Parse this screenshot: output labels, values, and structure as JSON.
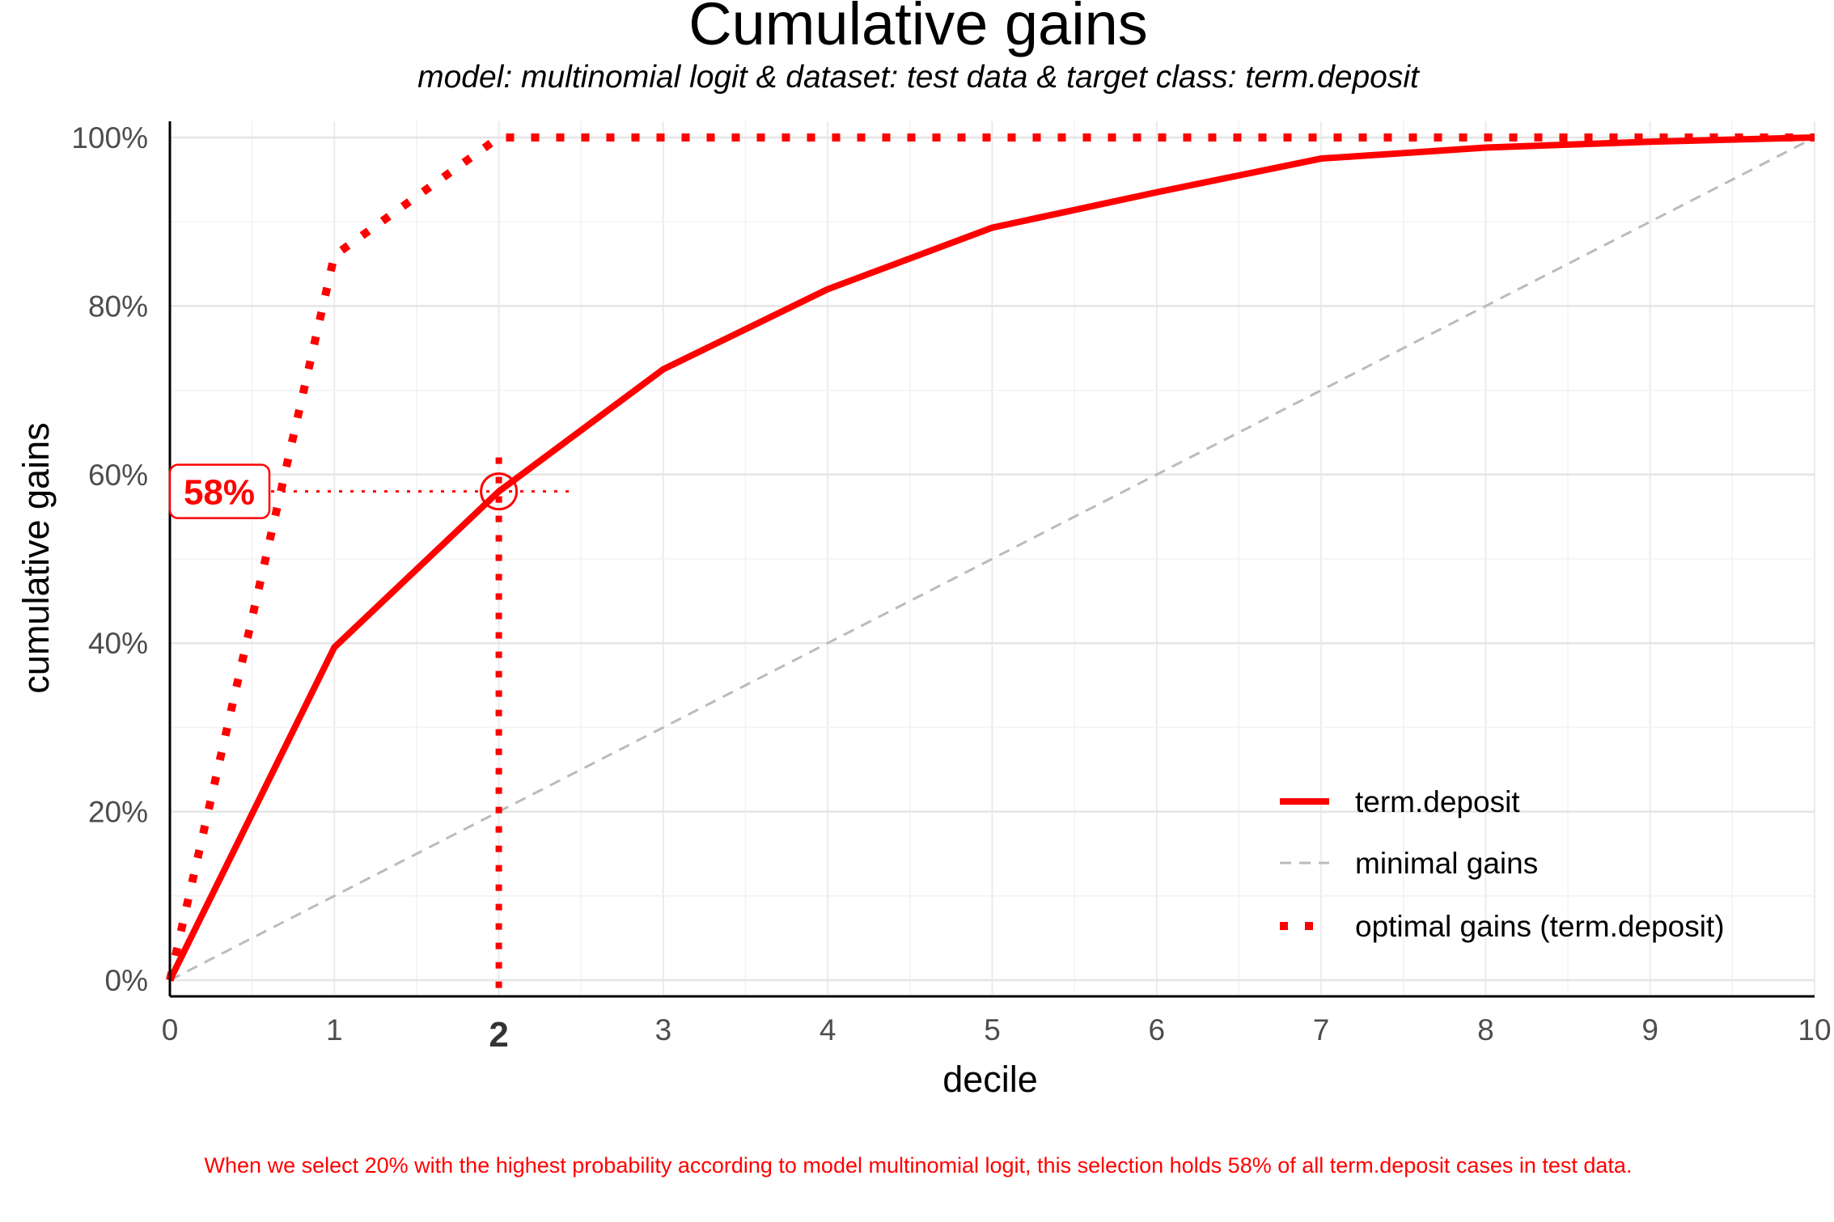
{
  "chart_data": {
    "type": "line",
    "title": "Cumulative gains",
    "subtitle": "model: multinomial logit  &  dataset: test data  &  target class: term.deposit",
    "xlabel": "decile",
    "ylabel": "cumulative gains",
    "xlim": [
      0,
      10
    ],
    "ylim": [
      0,
      1
    ],
    "x_ticks": [
      "0",
      "1",
      "2",
      "3",
      "4",
      "5",
      "6",
      "7",
      "8",
      "9",
      "10"
    ],
    "y_ticks": [
      "0%",
      "20%",
      "40%",
      "60%",
      "80%",
      "100%"
    ],
    "highlight_x_tick": "2",
    "grid": true,
    "legend_position": "bottom-right",
    "x": [
      0,
      1,
      2,
      3,
      4,
      5,
      6,
      7,
      8,
      9,
      10
    ],
    "series": [
      {
        "name": "term.deposit",
        "style": "solid",
        "color": "#ff0000",
        "values": [
          0,
          0.395,
          0.58,
          0.725,
          0.82,
          0.893,
          0.935,
          0.975,
          0.988,
          0.995,
          1.0
        ]
      },
      {
        "name": "minimal gains",
        "style": "dashed",
        "color": "#bbbbbb",
        "values": [
          0,
          0.1,
          0.2,
          0.3,
          0.4,
          0.5,
          0.6,
          0.7,
          0.8,
          0.9,
          1.0
        ]
      },
      {
        "name": "optimal gains (term.deposit)",
        "style": "dotted",
        "color": "#ff0000",
        "values": [
          0,
          0.86,
          1.0,
          1.0,
          1.0,
          1.0,
          1.0,
          1.0,
          1.0,
          1.0,
          1.0
        ]
      }
    ],
    "annotation": {
      "x": 2,
      "y": 0.58,
      "label": "58%",
      "caption": "When we select 20% with the highest probability according to model multinomial logit, this selection holds 58% of all term.deposit cases in test data."
    }
  }
}
